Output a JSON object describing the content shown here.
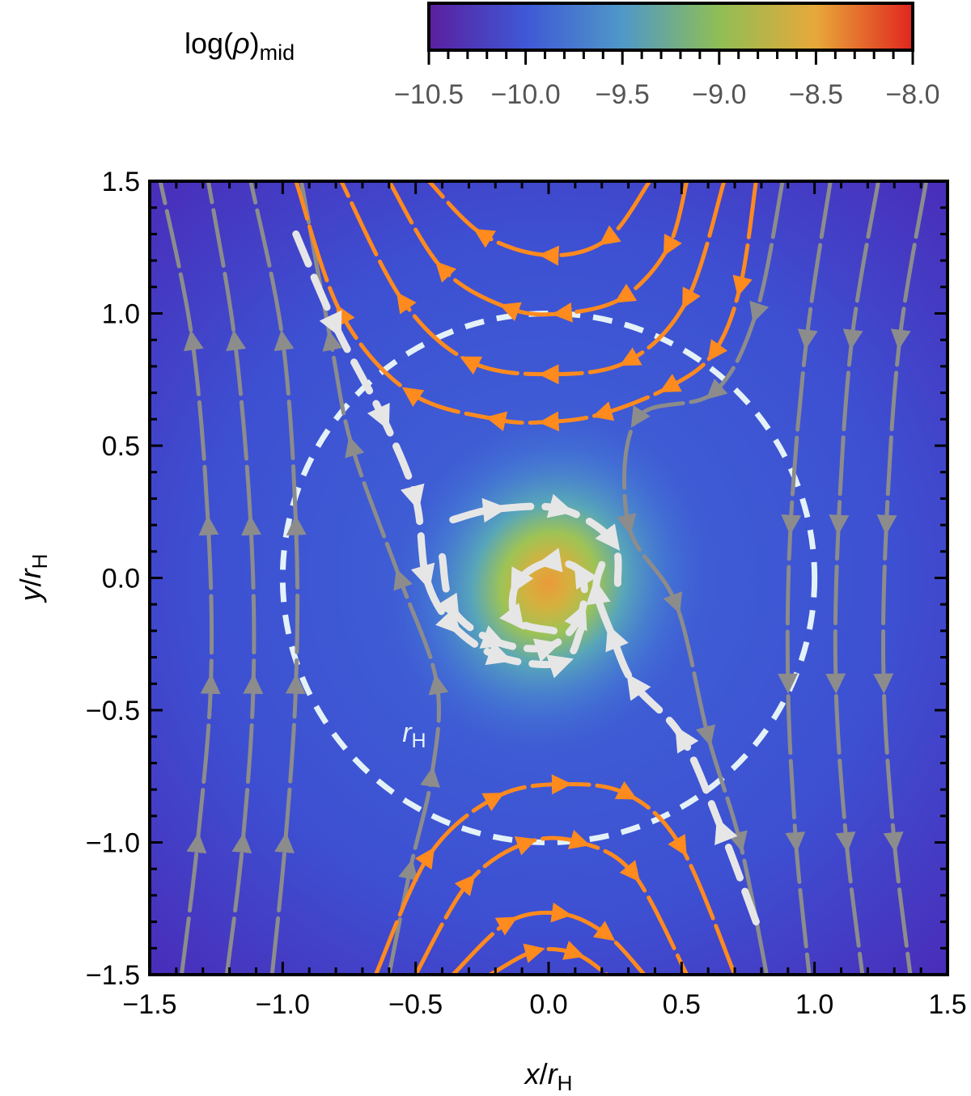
{
  "chart_data": {
    "type": "heatmap",
    "title": "",
    "xlabel": {
      "main": "x",
      "sep": "/",
      "var": "r",
      "sub": "H"
    },
    "ylabel": {
      "main": "y",
      "sep": "/",
      "var": "r",
      "sub": "H"
    },
    "xlim": [
      -1.5,
      1.5
    ],
    "ylim": [
      -1.5,
      1.5
    ],
    "xticks": [
      "−1.5",
      "−1.0",
      "−0.5",
      "0.0",
      "0.5",
      "1.0",
      "1.5"
    ],
    "yticks": [
      "−1.5",
      "−1.0",
      "−0.5",
      "0.0",
      "0.5",
      "1.0",
      "1.5"
    ],
    "xtick_values": [
      -1.5,
      -1.0,
      -0.5,
      0.0,
      0.5,
      1.0,
      1.5
    ],
    "ytick_values": [
      -1.5,
      -1.0,
      -0.5,
      0.0,
      0.5,
      1.0,
      1.5
    ],
    "colorbar": {
      "label": {
        "main": "log(",
        "rho": "ρ",
        "close": ")",
        "sub": "mid"
      },
      "range": [
        -10.5,
        -8.0
      ],
      "tick_labels": [
        "−10.5",
        "−10.0",
        "−9.5",
        "−9.0",
        "−8.5",
        "−8.0"
      ],
      "tick_values": [
        -10.5,
        -10.0,
        -9.5,
        -9.0,
        -8.5,
        -8.0
      ],
      "colors": [
        "#5a1f9e",
        "#3f58d6",
        "#4f98c8",
        "#8fbe55",
        "#e8a83a",
        "#e0261e"
      ]
    },
    "density_field": {
      "background": -10.35,
      "peak": -8.3,
      "peak_center": [
        0.0,
        -0.02
      ]
    },
    "hill_sphere": {
      "label": {
        "var": "r",
        "sub": "H"
      },
      "center": [
        0.0,
        0.0
      ],
      "radius": 1.0,
      "label_pos": [
        -0.55,
        -0.62
      ],
      "color": "#e4f2f8"
    },
    "streamline_colors": {
      "horseshoe": "#ff8a1e",
      "passing": "#8c8c8c",
      "accreting": "#e6e6e6"
    },
    "streamlines": [
      {
        "kind": "passing",
        "points": [
          [
            -1.46,
            1.5
          ],
          [
            -1.34,
            0.9
          ],
          [
            -1.28,
            0.2
          ],
          [
            -1.27,
            -0.4
          ],
          [
            -1.32,
            -1.0
          ],
          [
            -1.38,
            -1.5
          ]
        ],
        "dir": "up"
      },
      {
        "kind": "passing",
        "points": [
          [
            -1.28,
            1.5
          ],
          [
            -1.18,
            0.9
          ],
          [
            -1.12,
            0.2
          ],
          [
            -1.11,
            -0.4
          ],
          [
            -1.15,
            -1.0
          ],
          [
            -1.21,
            -1.5
          ]
        ],
        "dir": "up"
      },
      {
        "kind": "passing",
        "points": [
          [
            -1.12,
            1.5
          ],
          [
            -1.0,
            0.9
          ],
          [
            -0.95,
            0.2
          ],
          [
            -0.95,
            -0.4
          ],
          [
            -0.99,
            -1.0
          ],
          [
            -1.04,
            -1.5
          ]
        ],
        "dir": "up"
      },
      {
        "kind": "passing",
        "points": [
          [
            -0.93,
            1.5
          ],
          [
            -0.82,
            0.9
          ],
          [
            -0.74,
            0.5
          ],
          [
            -0.56,
            0.0
          ],
          [
            -0.42,
            -0.4
          ],
          [
            -0.44,
            -0.75
          ],
          [
            -0.52,
            -1.1
          ],
          [
            -0.6,
            -1.5
          ]
        ],
        "dir": "up"
      },
      {
        "kind": "passing",
        "points": [
          [
            1.42,
            1.5
          ],
          [
            1.32,
            0.9
          ],
          [
            1.27,
            0.2
          ],
          [
            1.26,
            -0.4
          ],
          [
            1.3,
            -1.0
          ],
          [
            1.36,
            -1.5
          ]
        ],
        "dir": "down"
      },
      {
        "kind": "passing",
        "points": [
          [
            1.24,
            1.5
          ],
          [
            1.14,
            0.9
          ],
          [
            1.09,
            0.2
          ],
          [
            1.08,
            -0.4
          ],
          [
            1.12,
            -1.0
          ],
          [
            1.18,
            -1.5
          ]
        ],
        "dir": "down"
      },
      {
        "kind": "passing",
        "points": [
          [
            1.06,
            1.5
          ],
          [
            0.97,
            0.9
          ],
          [
            0.91,
            0.2
          ],
          [
            0.9,
            -0.4
          ],
          [
            0.93,
            -1.0
          ],
          [
            0.98,
            -1.5
          ]
        ],
        "dir": "down"
      },
      {
        "kind": "passing",
        "points": [
          [
            0.88,
            1.5
          ],
          [
            0.78,
            1.0
          ],
          [
            0.62,
            0.7
          ],
          [
            0.33,
            0.6
          ],
          [
            0.3,
            0.2
          ],
          [
            0.48,
            -0.1
          ],
          [
            0.6,
            -0.6
          ],
          [
            0.72,
            -1.0
          ],
          [
            0.82,
            -1.5
          ]
        ],
        "dir": "down"
      },
      {
        "kind": "horseshoe",
        "points": [
          [
            -0.78,
            1.5
          ],
          [
            -0.55,
            1.05
          ],
          [
            -0.3,
            0.82
          ],
          [
            0.0,
            0.77
          ],
          [
            0.3,
            0.82
          ],
          [
            0.52,
            1.05
          ],
          [
            0.66,
            1.5
          ]
        ],
        "dir": "left"
      },
      {
        "kind": "horseshoe",
        "points": [
          [
            -0.6,
            1.5
          ],
          [
            -0.4,
            1.17
          ],
          [
            -0.15,
            1.02
          ],
          [
            0.05,
            1.0
          ],
          [
            0.28,
            1.06
          ],
          [
            0.45,
            1.25
          ],
          [
            0.52,
            1.5
          ]
        ],
        "dir": "left"
      },
      {
        "kind": "horseshoe",
        "points": [
          [
            -0.45,
            1.5
          ],
          [
            -0.25,
            1.3
          ],
          [
            0.0,
            1.22
          ],
          [
            0.22,
            1.28
          ],
          [
            0.38,
            1.5
          ]
        ],
        "dir": "left"
      },
      {
        "kind": "horseshoe",
        "points": [
          [
            -0.95,
            1.5
          ],
          [
            -0.78,
            1.0
          ],
          [
            -0.52,
            0.7
          ],
          [
            -0.2,
            0.6
          ],
          [
            0.0,
            0.59
          ],
          [
            0.2,
            0.62
          ],
          [
            0.45,
            0.72
          ],
          [
            0.62,
            0.85
          ],
          [
            0.72,
            1.1
          ],
          [
            0.78,
            1.5
          ]
        ],
        "dir": "left"
      },
      {
        "kind": "horseshoe",
        "points": [
          [
            -0.65,
            -1.5
          ],
          [
            -0.45,
            -1.05
          ],
          [
            -0.2,
            -0.83
          ],
          [
            0.05,
            -0.78
          ],
          [
            0.3,
            -0.82
          ],
          [
            0.5,
            -1.02
          ],
          [
            0.7,
            -1.5
          ]
        ],
        "dir": "right"
      },
      {
        "kind": "horseshoe",
        "points": [
          [
            -0.5,
            -1.5
          ],
          [
            -0.3,
            -1.15
          ],
          [
            -0.08,
            -1.0
          ],
          [
            0.12,
            -1.0
          ],
          [
            0.32,
            -1.12
          ],
          [
            0.52,
            -1.5
          ]
        ],
        "dir": "right"
      },
      {
        "kind": "horseshoe",
        "points": [
          [
            -0.36,
            -1.5
          ],
          [
            -0.15,
            -1.3
          ],
          [
            0.05,
            -1.27
          ],
          [
            0.22,
            -1.35
          ],
          [
            0.36,
            -1.5
          ]
        ],
        "dir": "right"
      },
      {
        "kind": "horseshoe",
        "points": [
          [
            -0.22,
            -1.5
          ],
          [
            -0.05,
            -1.41
          ],
          [
            0.1,
            -1.42
          ],
          [
            0.22,
            -1.5
          ]
        ],
        "dir": "right"
      },
      {
        "kind": "accreting",
        "points": [
          [
            -0.95,
            1.3
          ],
          [
            -0.8,
            0.95
          ],
          [
            -0.62,
            0.6
          ],
          [
            -0.5,
            0.3
          ],
          [
            -0.46,
            0.0
          ],
          [
            -0.36,
            -0.18
          ],
          [
            -0.18,
            -0.3
          ],
          [
            0.05,
            -0.32
          ],
          [
            0.12,
            -0.2
          ]
        ],
        "dir": "down"
      },
      {
        "kind": "accreting",
        "points": [
          [
            0.78,
            -1.3
          ],
          [
            0.65,
            -0.95
          ],
          [
            0.5,
            -0.6
          ],
          [
            0.32,
            -0.4
          ],
          [
            0.24,
            -0.22
          ],
          [
            0.18,
            -0.05
          ],
          [
            0.2,
            0.05
          ]
        ],
        "dir": "up"
      },
      {
        "kind": "accreting",
        "points": [
          [
            -0.36,
            0.22
          ],
          [
            -0.2,
            0.26
          ],
          [
            0.05,
            0.26
          ],
          [
            0.24,
            0.14
          ],
          [
            0.26,
            -0.02
          ]
        ],
        "dir": "right"
      },
      {
        "kind": "accreting",
        "points": [
          [
            -0.4,
            0.08
          ],
          [
            -0.36,
            -0.12
          ],
          [
            -0.2,
            -0.24
          ],
          [
            0.0,
            -0.26
          ],
          [
            0.12,
            -0.14
          ],
          [
            0.12,
            0.02
          ],
          [
            0.0,
            0.06
          ],
          [
            -0.12,
            -0.02
          ],
          [
            -0.12,
            -0.16
          ],
          [
            0.02,
            -0.2
          ]
        ],
        "dir": "right"
      }
    ]
  }
}
